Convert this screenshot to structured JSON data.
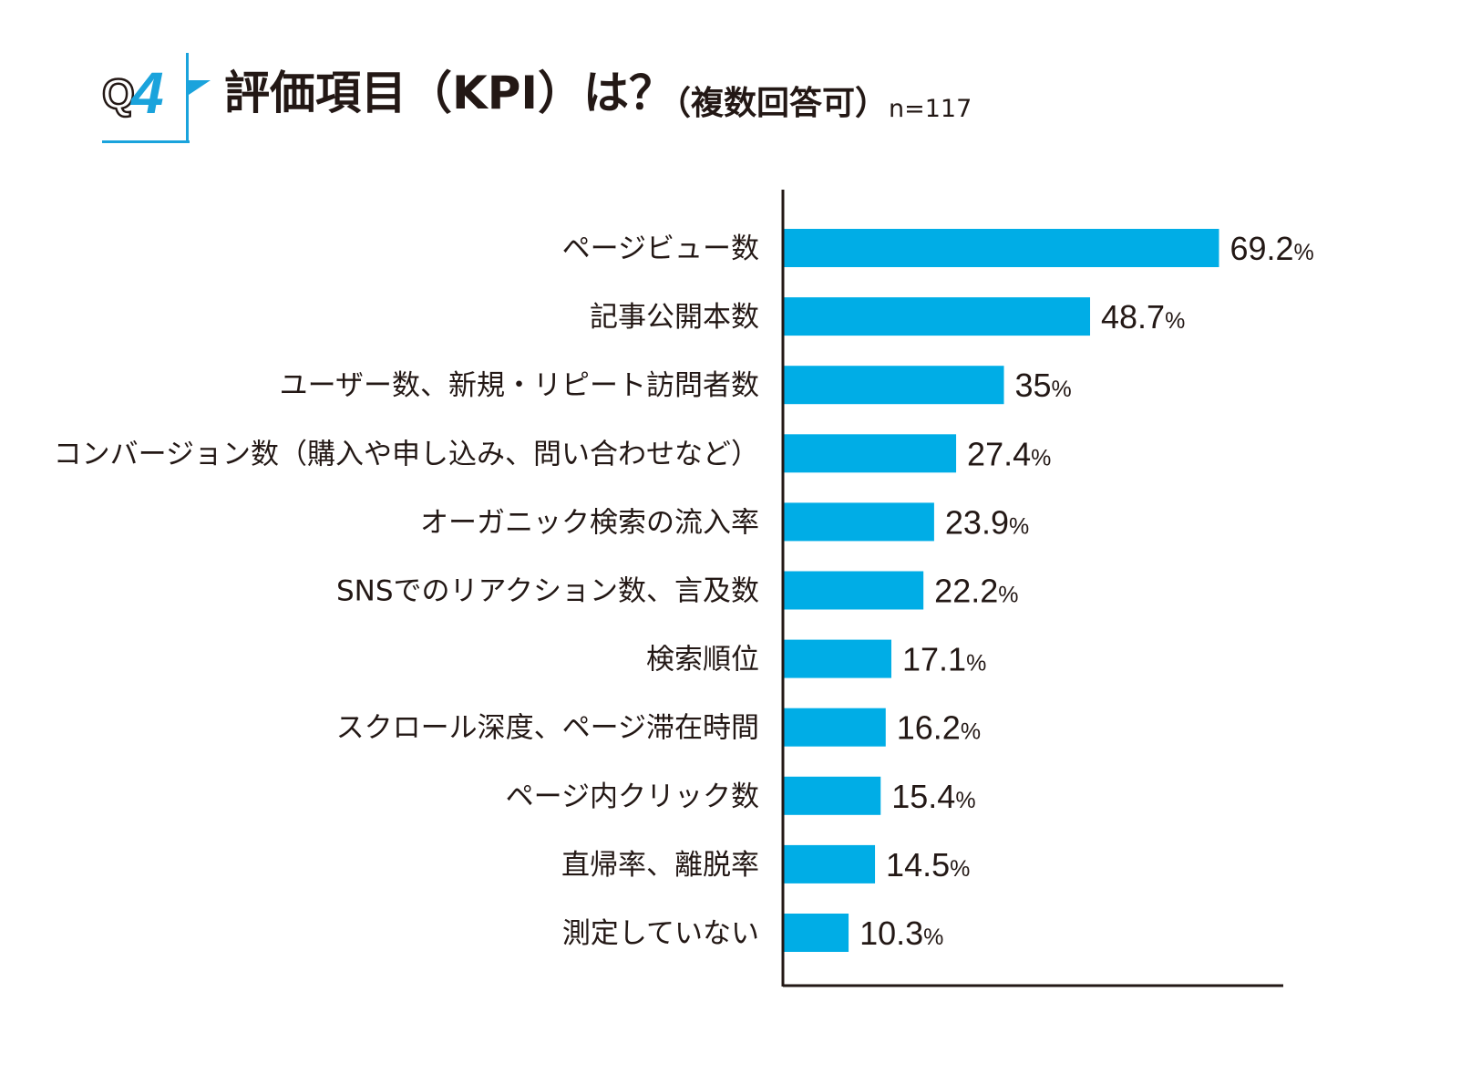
{
  "header": {
    "q_letter": "Q",
    "q_number": "4",
    "title": "評価項目（KPI）は？",
    "subtitle": "（複数回答可）",
    "sample_size": "n=117"
  },
  "colors": {
    "bar": "#00ade6",
    "accent": "#1aa3dc",
    "text": "#231815",
    "axis": "#231815"
  },
  "chart_data": {
    "type": "bar",
    "orientation": "horizontal",
    "title": "評価項目（KPI）は？（複数回答可）",
    "xlabel": "",
    "ylabel": "",
    "xlim": [
      0,
      100
    ],
    "unit": "%",
    "categories": [
      "ページビュー数",
      "記事公開本数",
      "ユーザー数、新規・リピート訪問者数",
      "コンバージョン数（購入や申し込み、問い合わせなど）",
      "オーガニック検索の流入率",
      "SNSでのリアクション数、言及数",
      "検索順位",
      "スクロール深度、ページ滞在時間",
      "ページ内クリック数",
      "直帰率、離脱率",
      "測定していない"
    ],
    "values": [
      69.2,
      48.7,
      35,
      27.4,
      23.9,
      22.2,
      17.1,
      16.2,
      15.4,
      14.5,
      10.3
    ],
    "value_labels": [
      "69.2",
      "48.7",
      "35",
      "27.4",
      "23.9",
      "22.2",
      "17.1",
      "16.2",
      "15.4",
      "14.5",
      "10.3"
    ]
  }
}
